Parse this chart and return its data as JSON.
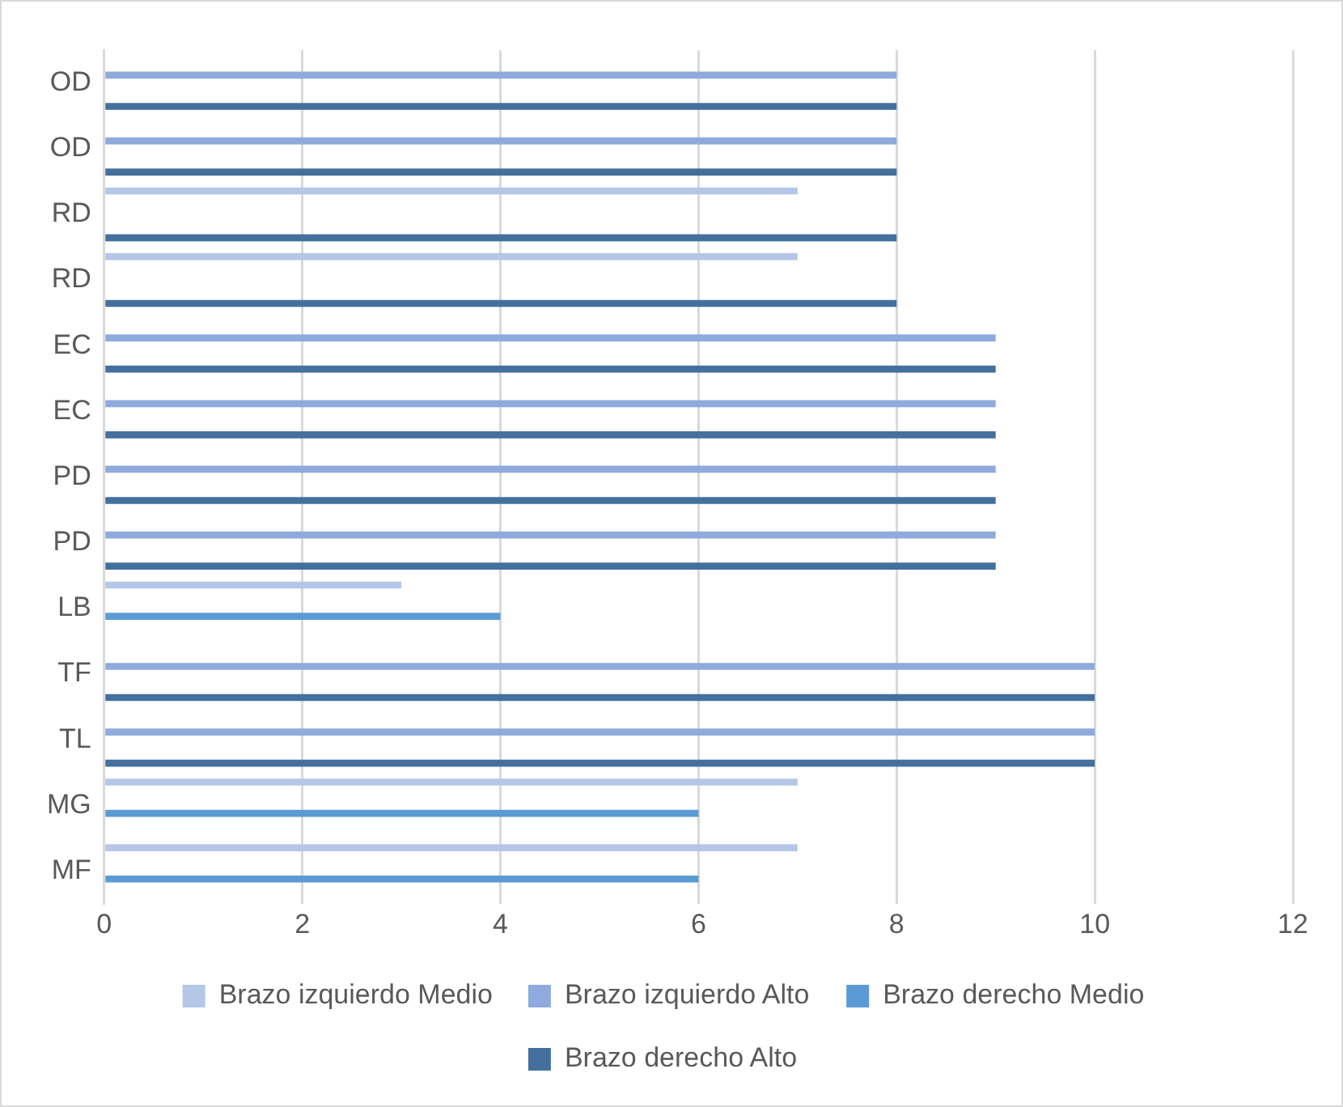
{
  "chart_data": {
    "type": "bar",
    "orientation": "horizontal",
    "categories": [
      "OD",
      "OD",
      "RD",
      "RD",
      "EC",
      "EC",
      "PD",
      "PD",
      "LB",
      "TF",
      "TL",
      "MG",
      "MF"
    ],
    "series": [
      {
        "name": "Brazo izquierdo Medio",
        "color": "#b4c7e7",
        "values": [
          null,
          null,
          7,
          7,
          null,
          null,
          null,
          null,
          3,
          null,
          null,
          7,
          7
        ]
      },
      {
        "name": "Brazo izquierdo Alto",
        "color": "#8faadc",
        "values": [
          8,
          8,
          null,
          null,
          9,
          9,
          9,
          9,
          null,
          10,
          10,
          null,
          null
        ]
      },
      {
        "name": "Brazo derecho Medio",
        "color": "#5b9bd5",
        "values": [
          null,
          null,
          null,
          null,
          null,
          null,
          null,
          null,
          4,
          null,
          null,
          6,
          6
        ]
      },
      {
        "name": "Brazo derecho Alto",
        "color": "#44709d",
        "values": [
          8,
          8,
          8,
          8,
          9,
          9,
          9,
          9,
          null,
          10,
          10,
          null,
          null
        ]
      }
    ],
    "xlim": [
      0,
      12
    ],
    "xticks": [
      0,
      2,
      4,
      6,
      8,
      10,
      12
    ],
    "grid": "x",
    "legend": "bottom"
  }
}
